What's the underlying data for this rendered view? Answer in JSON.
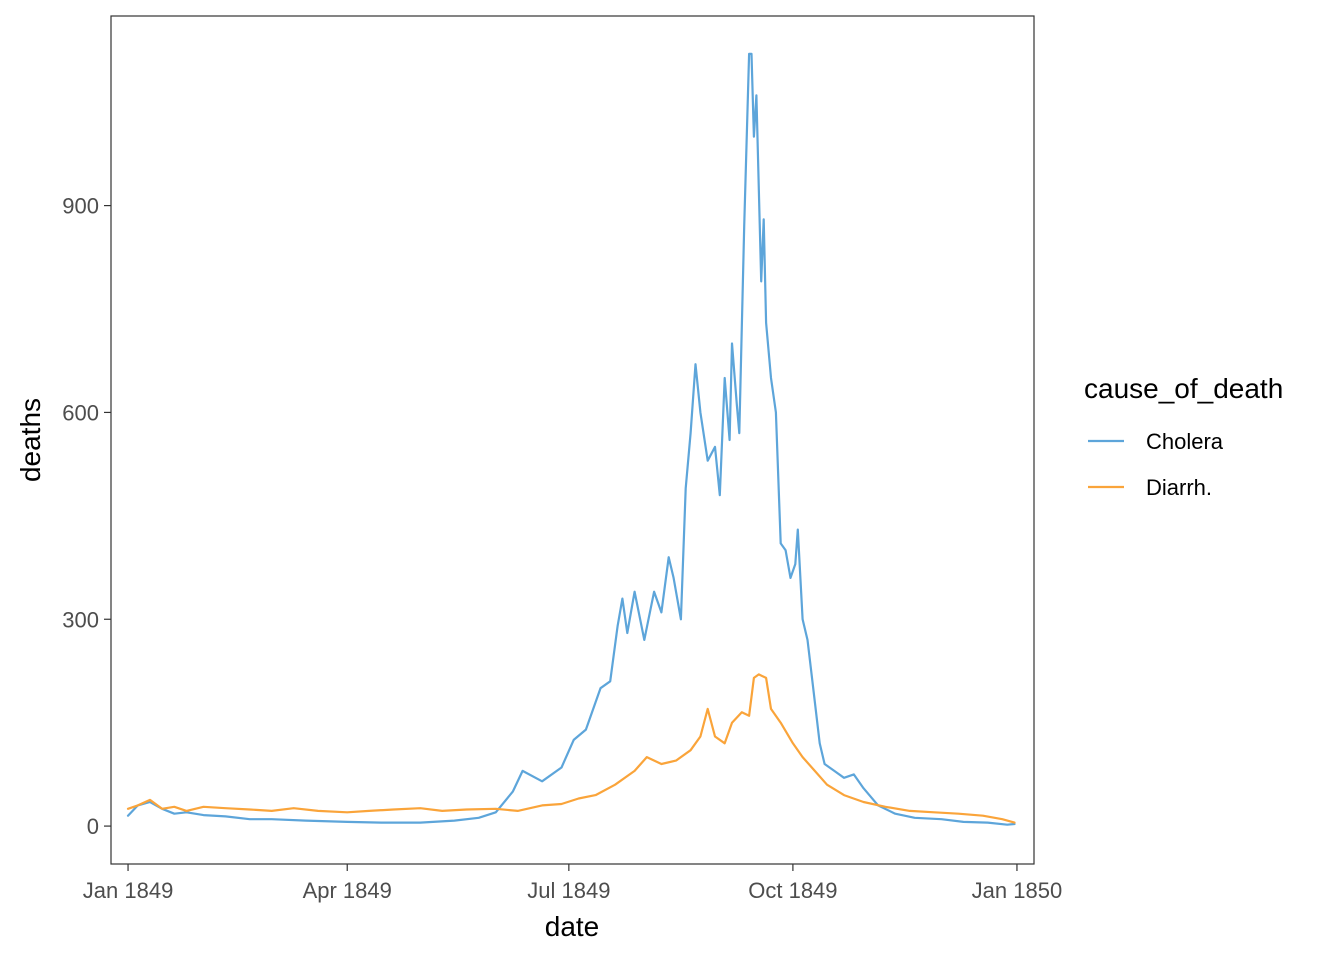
{
  "chart_data": {
    "type": "line",
    "title": "",
    "xlabel": "date",
    "ylabel": "deaths",
    "x_ticks": [
      "Jan 1849",
      "Apr 1849",
      "Jul 1849",
      "Oct 1849",
      "Jan 1850"
    ],
    "y_ticks": [
      "0",
      "300",
      "600",
      "900"
    ],
    "xlim": [
      "1848-12-25",
      "1850-01-08"
    ],
    "ylim": [
      -55,
      1175
    ],
    "grid": false,
    "legend": {
      "title": "cause_of_death",
      "position": "right"
    },
    "series": [
      {
        "name": "Cholera",
        "color": "#5DA5DA",
        "points": [
          [
            "1849-01-01",
            15
          ],
          [
            "1849-01-05",
            30
          ],
          [
            "1849-01-10",
            35
          ],
          [
            "1849-01-15",
            25
          ],
          [
            "1849-01-20",
            18
          ],
          [
            "1849-01-25",
            20
          ],
          [
            "1849-02-01",
            16
          ],
          [
            "1849-02-10",
            14
          ],
          [
            "1849-02-20",
            10
          ],
          [
            "1849-03-01",
            10
          ],
          [
            "1849-03-15",
            8
          ],
          [
            "1849-04-01",
            6
          ],
          [
            "1849-04-15",
            5
          ],
          [
            "1849-05-01",
            5
          ],
          [
            "1849-05-15",
            8
          ],
          [
            "1849-05-25",
            12
          ],
          [
            "1849-06-01",
            20
          ],
          [
            "1849-06-08",
            50
          ],
          [
            "1849-06-12",
            80
          ],
          [
            "1849-06-20",
            65
          ],
          [
            "1849-06-28",
            85
          ],
          [
            "1849-07-03",
            125
          ],
          [
            "1849-07-08",
            140
          ],
          [
            "1849-07-14",
            200
          ],
          [
            "1849-07-18",
            210
          ],
          [
            "1849-07-21",
            290
          ],
          [
            "1849-07-23",
            330
          ],
          [
            "1849-07-25",
            280
          ],
          [
            "1849-07-28",
            340
          ],
          [
            "1849-08-01",
            270
          ],
          [
            "1849-08-05",
            340
          ],
          [
            "1849-08-08",
            310
          ],
          [
            "1849-08-11",
            390
          ],
          [
            "1849-08-13",
            360
          ],
          [
            "1849-08-16",
            300
          ],
          [
            "1849-08-18",
            490
          ],
          [
            "1849-08-20",
            570
          ],
          [
            "1849-08-22",
            670
          ],
          [
            "1849-08-24",
            600
          ],
          [
            "1849-08-27",
            530
          ],
          [
            "1849-08-30",
            550
          ],
          [
            "1849-09-01",
            480
          ],
          [
            "1849-09-03",
            650
          ],
          [
            "1849-09-05",
            560
          ],
          [
            "1849-09-06",
            700
          ],
          [
            "1849-09-08",
            610
          ],
          [
            "1849-09-09",
            570
          ],
          [
            "1849-09-11",
            870
          ],
          [
            "1849-09-13",
            1120
          ],
          [
            "1849-09-14",
            1120
          ],
          [
            "1849-09-15",
            1000
          ],
          [
            "1849-09-16",
            1060
          ],
          [
            "1849-09-18",
            790
          ],
          [
            "1849-09-19",
            880
          ],
          [
            "1849-09-20",
            730
          ],
          [
            "1849-09-22",
            650
          ],
          [
            "1849-09-24",
            600
          ],
          [
            "1849-09-26",
            410
          ],
          [
            "1849-09-28",
            400
          ],
          [
            "1849-09-30",
            360
          ],
          [
            "1849-10-02",
            380
          ],
          [
            "1849-10-03",
            430
          ],
          [
            "1849-10-05",
            300
          ],
          [
            "1849-10-07",
            270
          ],
          [
            "1849-10-09",
            210
          ],
          [
            "1849-10-12",
            120
          ],
          [
            "1849-10-14",
            90
          ],
          [
            "1849-10-18",
            80
          ],
          [
            "1849-10-22",
            70
          ],
          [
            "1849-10-26",
            75
          ],
          [
            "1849-10-30",
            55
          ],
          [
            "1849-11-05",
            30
          ],
          [
            "1849-11-12",
            18
          ],
          [
            "1849-11-20",
            12
          ],
          [
            "1849-12-01",
            10
          ],
          [
            "1849-12-10",
            6
          ],
          [
            "1849-12-20",
            5
          ],
          [
            "1849-12-28",
            2
          ],
          [
            "1849-12-31",
            3
          ]
        ]
      },
      {
        "name": "Diarrh.",
        "color": "#FAA43A",
        "points": [
          [
            "1849-01-01",
            25
          ],
          [
            "1849-01-05",
            30
          ],
          [
            "1849-01-10",
            38
          ],
          [
            "1849-01-15",
            25
          ],
          [
            "1849-01-20",
            28
          ],
          [
            "1849-01-25",
            22
          ],
          [
            "1849-02-01",
            28
          ],
          [
            "1849-02-10",
            26
          ],
          [
            "1849-02-20",
            24
          ],
          [
            "1849-03-01",
            22
          ],
          [
            "1849-03-10",
            26
          ],
          [
            "1849-03-20",
            22
          ],
          [
            "1849-04-01",
            20
          ],
          [
            "1849-04-10",
            22
          ],
          [
            "1849-04-20",
            24
          ],
          [
            "1849-05-01",
            26
          ],
          [
            "1849-05-10",
            22
          ],
          [
            "1849-05-20",
            24
          ],
          [
            "1849-06-01",
            25
          ],
          [
            "1849-06-10",
            22
          ],
          [
            "1849-06-20",
            30
          ],
          [
            "1849-06-28",
            32
          ],
          [
            "1849-07-05",
            40
          ],
          [
            "1849-07-12",
            45
          ],
          [
            "1849-07-20",
            60
          ],
          [
            "1849-07-28",
            80
          ],
          [
            "1849-08-02",
            100
          ],
          [
            "1849-08-08",
            90
          ],
          [
            "1849-08-14",
            95
          ],
          [
            "1849-08-20",
            110
          ],
          [
            "1849-08-24",
            130
          ],
          [
            "1849-08-27",
            170
          ],
          [
            "1849-08-30",
            130
          ],
          [
            "1849-09-03",
            120
          ],
          [
            "1849-09-06",
            150
          ],
          [
            "1849-09-10",
            165
          ],
          [
            "1849-09-13",
            160
          ],
          [
            "1849-09-15",
            215
          ],
          [
            "1849-09-17",
            220
          ],
          [
            "1849-09-20",
            215
          ],
          [
            "1849-09-22",
            170
          ],
          [
            "1849-09-26",
            150
          ],
          [
            "1849-10-01",
            120
          ],
          [
            "1849-10-05",
            100
          ],
          [
            "1849-10-10",
            80
          ],
          [
            "1849-10-15",
            60
          ],
          [
            "1849-10-22",
            45
          ],
          [
            "1849-10-30",
            35
          ],
          [
            "1849-11-08",
            28
          ],
          [
            "1849-11-18",
            22
          ],
          [
            "1849-11-28",
            20
          ],
          [
            "1849-12-08",
            18
          ],
          [
            "1849-12-18",
            15
          ],
          [
            "1849-12-26",
            10
          ],
          [
            "1849-12-31",
            5
          ]
        ]
      }
    ]
  }
}
